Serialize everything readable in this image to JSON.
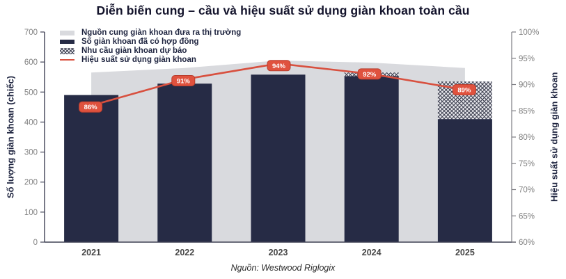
{
  "title": "Diễn biến cung – cầu và hiệu suất sử dụng giàn khoan toàn cầu",
  "source": "Nguồn: Westwood Riglogix",
  "colors": {
    "supply_area": "#d9dade",
    "contracted_bar": "#262b45",
    "hatch_line": "#3d4050",
    "hatch_bg": "#e9e9ee",
    "line": "#d8503f",
    "badge_bg": "#e0523e",
    "badge_border": "#b83e2e",
    "badge_text": "#ffffff",
    "axis_line": "#3e4054",
    "right_axis_line": "#7c7c82",
    "tick_text": "#818181",
    "year_text": "#474747"
  },
  "legend": {
    "items": [
      {
        "label": "Nguồn cung giàn khoan đưa ra thị trường",
        "swatch": "supply"
      },
      {
        "label": "Số giàn khoan đã có hợp đồng",
        "swatch": "contracted"
      },
      {
        "label": "Nhu cầu giàn khoan dự báo",
        "swatch": "demand-hatch"
      },
      {
        "label": "Hiệu suất sử dụng giàn khoan",
        "swatch": "line"
      }
    ]
  },
  "axes": {
    "left": {
      "label": "Số lượng giàn khoan (chiếc)"
    },
    "right": {
      "label": "Hiệu suất sử dụng giàn khoan"
    }
  },
  "chart_data": {
    "type": "combo",
    "categories": [
      "2021",
      "2022",
      "2023",
      "2024",
      "2025"
    ],
    "series": [
      {
        "name": "Nguồn cung giàn khoan đưa ra thị trường",
        "type": "area",
        "axis": "left",
        "values": [
          565,
          580,
          605,
          598,
          580
        ]
      },
      {
        "name": "Số giàn khoan đã có hợp đồng",
        "type": "bar",
        "axis": "left",
        "values": [
          490,
          528,
          558,
          553,
          410
        ]
      },
      {
        "name": "Nhu cầu giàn khoan dự báo",
        "type": "bar-hatch-top",
        "axis": "left",
        "values": [
          null,
          null,
          null,
          565,
          535
        ]
      },
      {
        "name": "Hiệu suất sử dụng giàn khoan",
        "type": "line",
        "axis": "right",
        "values": [
          86,
          91,
          94,
          92,
          89
        ],
        "point_labels": [
          "86%",
          "91%",
          "94%",
          "92%",
          "89%"
        ]
      }
    ],
    "left_axis": {
      "range": [
        0,
        700
      ],
      "ticks": [
        0,
        100,
        200,
        300,
        400,
        500,
        600,
        700
      ]
    },
    "right_axis": {
      "range": [
        60,
        100
      ],
      "tick_labels": [
        "60%",
        "65%",
        "70%",
        "75%",
        "80%",
        "85%",
        "90%",
        "95%",
        "100%"
      ]
    },
    "legend_position": "top-left-inside",
    "grid": false
  }
}
